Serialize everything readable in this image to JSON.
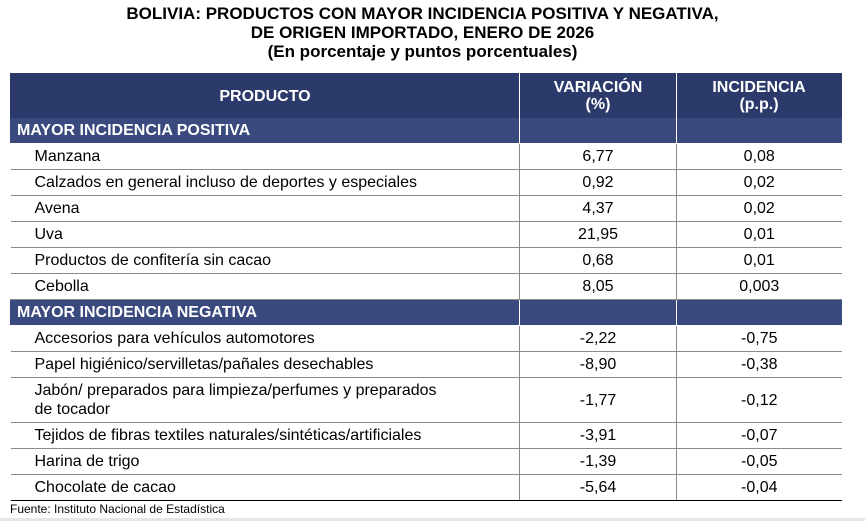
{
  "title": {
    "line1": "BOLIVIA: PRODUCTOS CON MAYOR INCIDENCIA POSITIVA Y NEGATIVA,",
    "line2": "DE ORIGEN IMPORTADO, ENERO DE 2026",
    "line3": "(En porcentaje y puntos porcentuales)"
  },
  "headers": {
    "producto": "PRODUCTO",
    "variacion_line1": "VARIACIÓN",
    "variacion_line2": "(%)",
    "incidencia_line1": "INCIDENCIA",
    "incidencia_line2": "(p.p.)"
  },
  "positive": {
    "label": "MAYOR INCIDENCIA POSITIVA",
    "rows": [
      {
        "product": "Manzana",
        "variation": "6,77",
        "incidence": "0,08"
      },
      {
        "product": "Calzados en general incluso de deportes y especiales",
        "variation": "0,92",
        "incidence": "0,02"
      },
      {
        "product": "Avena",
        "variation": "4,37",
        "incidence": "0,02"
      },
      {
        "product": "Uva",
        "variation": "21,95",
        "incidence": "0,01"
      },
      {
        "product": "Productos de confitería sin cacao",
        "variation": "0,68",
        "incidence": "0,01"
      },
      {
        "product": "Cebolla",
        "variation": "8,05",
        "incidence": "0,003"
      }
    ]
  },
  "negative": {
    "label": "MAYOR INCIDENCIA NEGATIVA",
    "rows": [
      {
        "product": "Accesorios para vehículos automotores",
        "variation": "-2,22",
        "incidence": "-0,75"
      },
      {
        "product": "Papel higiénico/servilletas/pañales desechables",
        "variation": "-8,90",
        "incidence": "-0,38"
      },
      {
        "product_line1": "Jabón/ preparados para limpieza/perfumes y preparados",
        "product_line2": "de tocador",
        "variation": "-1,77",
        "incidence": "-0,12"
      },
      {
        "product": "Tejidos de fibras textiles naturales/sintéticas/artificiales",
        "variation": "-3,91",
        "incidence": "-0,07"
      },
      {
        "product": "Harina de trigo",
        "variation": "-1,39",
        "incidence": "-0,05"
      },
      {
        "product": "Chocolate de cacao",
        "variation": "-5,64",
        "incidence": "-0,04"
      }
    ]
  },
  "source": "Fuente: Instituto Nacional de Estadística",
  "colors": {
    "header_bg": "#2b3a6b",
    "section_bg": "#3a4a7e",
    "header_text": "#ffffff"
  }
}
